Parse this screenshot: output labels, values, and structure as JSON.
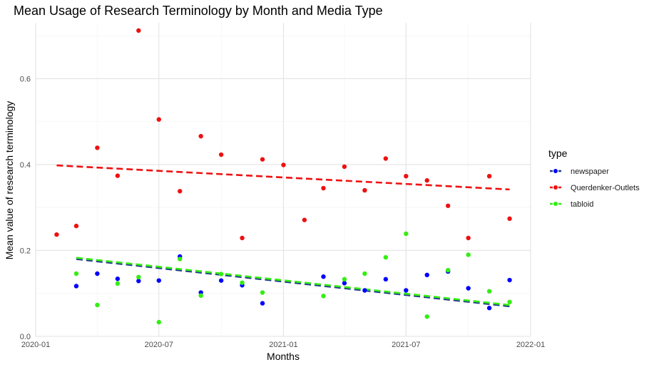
{
  "chart_data": {
    "type": "scatter",
    "title": "Mean Usage of Research Terminology by Month and Media Type",
    "xlabel": "Months",
    "ylabel": "Mean value of research terminology",
    "xlim": [
      "2020-01-01",
      "2022-01-01"
    ],
    "ylim": [
      0,
      0.73
    ],
    "x_ticks": [
      "2020-01",
      "2020-07",
      "2021-01",
      "2021-07",
      "2022-01"
    ],
    "y_ticks": [
      "0.0",
      "0.2",
      "0.4",
      "0.6"
    ],
    "grid": true,
    "legend": {
      "title": "type",
      "position": "right"
    },
    "series": [
      {
        "name": "newspaper",
        "color": "#0000ff",
        "trend_color": "#1f3a8a",
        "x": [
          "2020-03-01",
          "2020-04-01",
          "2020-05-01",
          "2020-06-01",
          "2020-07-01",
          "2020-08-01",
          "2020-09-01",
          "2020-10-01",
          "2020-11-01",
          "2020-12-01",
          "2021-03-01",
          "2021-04-01",
          "2021-05-01",
          "2021-06-01",
          "2021-07-01",
          "2021-08-01",
          "2021-09-01",
          "2021-10-01",
          "2021-11-01",
          "2021-12-01"
        ],
        "values": [
          0.117,
          0.146,
          0.134,
          0.129,
          0.13,
          0.186,
          0.102,
          0.13,
          0.119,
          0.077,
          0.139,
          0.124,
          0.107,
          0.133,
          0.107,
          0.143,
          0.151,
          0.112,
          0.066,
          0.131
        ],
        "trend": [
          {
            "x": "2020-03-01",
            "y": 0.18
          },
          {
            "x": "2021-12-01",
            "y": 0.07
          }
        ]
      },
      {
        "name": "Querdenker-Outlets",
        "color": "#ee1111",
        "trend_color": "#ee1111",
        "x": [
          "2020-02-01",
          "2020-03-01",
          "2020-04-01",
          "2020-05-01",
          "2020-06-01",
          "2020-07-01",
          "2020-08-01",
          "2020-09-01",
          "2020-10-01",
          "2020-11-01",
          "2020-12-01",
          "2021-01-01",
          "2021-02-01",
          "2021-03-01",
          "2021-04-01",
          "2021-05-01",
          "2021-06-01",
          "2021-07-01",
          "2021-08-01",
          "2021-09-01",
          "2021-10-01",
          "2021-11-01",
          "2021-12-01"
        ],
        "values": [
          0.237,
          0.257,
          0.439,
          0.374,
          0.712,
          0.505,
          0.338,
          0.466,
          0.423,
          0.229,
          0.412,
          0.399,
          0.271,
          0.345,
          0.395,
          0.34,
          0.414,
          0.373,
          0.363,
          0.304,
          0.229,
          0.373,
          0.274
        ],
        "trend": [
          {
            "x": "2020-02-01",
            "y": 0.398
          },
          {
            "x": "2021-12-01",
            "y": 0.342
          }
        ]
      },
      {
        "name": "tabloid",
        "color": "#33ee11",
        "trend_color": "#33ee11",
        "x": [
          "2020-03-01",
          "2020-04-01",
          "2020-05-01",
          "2020-06-01",
          "2020-07-01",
          "2020-08-01",
          "2020-09-01",
          "2020-10-01",
          "2020-11-01",
          "2020-12-01",
          "2021-03-01",
          "2021-04-01",
          "2021-05-01",
          "2021-06-01",
          "2021-07-01",
          "2021-08-01",
          "2021-09-01",
          "2021-10-01",
          "2021-11-01",
          "2021-12-01"
        ],
        "values": [
          0.146,
          0.073,
          0.123,
          0.138,
          0.033,
          0.18,
          0.095,
          0.145,
          0.125,
          0.102,
          0.094,
          0.133,
          0.146,
          0.184,
          0.239,
          0.046,
          0.154,
          0.19,
          0.105,
          0.08
        ],
        "trend": [
          {
            "x": "2020-03-01",
            "y": 0.183
          },
          {
            "x": "2021-12-01",
            "y": 0.073
          }
        ]
      }
    ]
  }
}
